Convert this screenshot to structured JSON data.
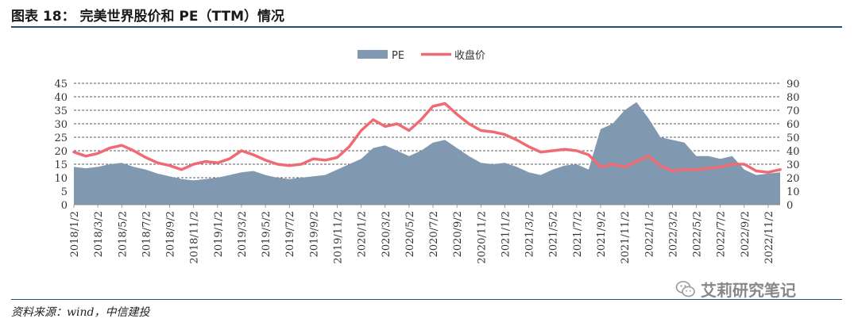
{
  "header": {
    "figure_title": "图表 18：   完美世界股价和 PE（TTM）情况"
  },
  "footer": {
    "source": "资料来源：wind，中信建投",
    "watermark": "艾莉研究笔记",
    "watermark_icon": "wechat-icon"
  },
  "colors": {
    "pe_fill": "#8098b0",
    "price_line": "#f06a73",
    "rule": "#1f4e79"
  },
  "chart_data": {
    "type": "area",
    "title": "",
    "xlabel": "",
    "ylabel_left": "",
    "ylabel_right": "",
    "ylim_left": [
      0,
      45
    ],
    "ylim_right": [
      0,
      90
    ],
    "yticks_left": [
      0,
      5,
      10,
      15,
      20,
      25,
      30,
      35,
      40,
      45
    ],
    "yticks_right": [
      0,
      10,
      20,
      30,
      40,
      50,
      60,
      70,
      80,
      90
    ],
    "grid": "horizontal dashed",
    "legend_position": "top-center",
    "x_tick_labels": [
      "2018/1/2",
      "2018/3/2",
      "2018/5/2",
      "2018/7/2",
      "2018/9/2",
      "2018/11/2",
      "2019/1/2",
      "2019/3/2",
      "2019/5/2",
      "2019/7/2",
      "2019/9/2",
      "2019/11/2",
      "2020/1/2",
      "2020/3/2",
      "2020/5/2",
      "2020/7/2",
      "2020/9/2",
      "2020/11/2",
      "2021/1/2",
      "2021/3/2",
      "2021/5/2",
      "2021/7/2",
      "2021/9/2",
      "2021/11/2",
      "2022/1/2",
      "2022/3/2",
      "2022/5/2",
      "2022/7/2",
      "2022/9/2",
      "2022/11/2"
    ],
    "x": [
      "2018/1/2",
      "2018/2/1",
      "2018/3/2",
      "2018/4/1",
      "2018/5/2",
      "2018/6/1",
      "2018/7/2",
      "2018/8/1",
      "2018/9/2",
      "2018/10/1",
      "2018/11/2",
      "2018/12/1",
      "2019/1/2",
      "2019/2/1",
      "2019/3/2",
      "2019/4/1",
      "2019/5/2",
      "2019/6/1",
      "2019/7/2",
      "2019/8/1",
      "2019/9/2",
      "2019/10/1",
      "2019/11/2",
      "2019/12/1",
      "2020/1/2",
      "2020/2/1",
      "2020/3/2",
      "2020/4/1",
      "2020/5/2",
      "2020/6/1",
      "2020/7/2",
      "2020/8/1",
      "2020/9/2",
      "2020/10/1",
      "2020/11/2",
      "2020/12/1",
      "2021/1/2",
      "2021/2/1",
      "2021/3/2",
      "2021/4/1",
      "2021/5/2",
      "2021/6/1",
      "2021/7/2",
      "2021/8/1",
      "2021/9/2",
      "2021/10/1",
      "2021/11/2",
      "2021/12/1",
      "2022/1/2",
      "2022/2/1",
      "2022/3/2",
      "2022/4/1",
      "2022/5/2",
      "2022/6/1",
      "2022/7/2",
      "2022/8/1",
      "2022/9/2",
      "2022/10/1",
      "2022/11/2",
      "2022/12/1"
    ],
    "series": [
      {
        "name": "PE",
        "axis": "left",
        "type": "area",
        "values": [
          14,
          13.5,
          14,
          15,
          15.5,
          14,
          13,
          11.5,
          10.5,
          9.5,
          9,
          9.5,
          10,
          11,
          12,
          12.5,
          11,
          10,
          9.5,
          10,
          10.5,
          11,
          13,
          15,
          17,
          21,
          22,
          20,
          18,
          20,
          23,
          24,
          21,
          18,
          15.5,
          15,
          15.5,
          14,
          12,
          11,
          13,
          14.5,
          15,
          13,
          28,
          30,
          35,
          38,
          32,
          25,
          24,
          23,
          18,
          18,
          17,
          18,
          13,
          11,
          11.5,
          12
        ]
      },
      {
        "name": "收盘价",
        "axis": "right",
        "type": "line",
        "values": [
          39,
          36,
          38,
          42,
          44,
          40,
          35,
          31,
          29,
          26,
          30,
          32,
          31,
          34,
          40,
          37,
          33,
          30,
          29,
          30,
          34,
          33,
          35,
          43,
          55,
          63,
          58,
          60,
          55,
          63,
          73,
          75,
          67,
          60,
          55,
          54,
          52,
          48,
          43,
          39,
          40,
          41,
          40,
          37,
          28,
          30,
          28,
          32,
          36,
          29,
          25,
          26,
          26,
          27,
          28,
          30,
          30,
          25,
          24,
          26
        ]
      }
    ]
  }
}
